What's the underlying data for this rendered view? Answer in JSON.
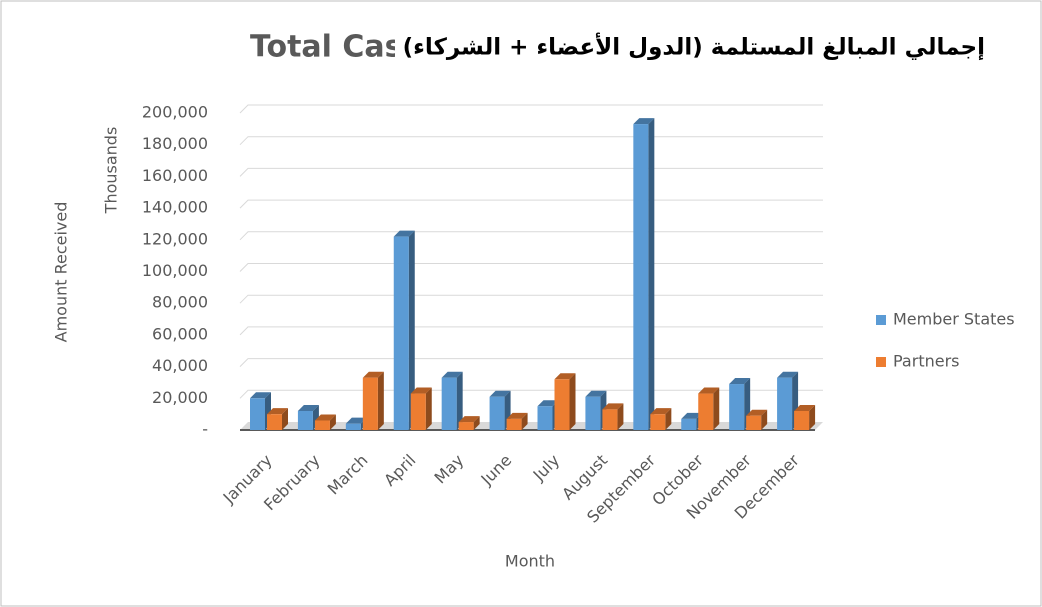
{
  "chart_data": {
    "type": "bar3d",
    "title": "Total Cas",
    "subtitle": "إجمالي المبالغ المستلمة (الدول الأعضاء + الشركاء)",
    "y_label": "Amount Received",
    "y_unit": "Thousands",
    "x_label": "Month",
    "categories": [
      "January",
      "February",
      "March",
      "April",
      "May",
      "June",
      "July",
      "August",
      "September",
      "October",
      "November",
      "December"
    ],
    "series": [
      {
        "name": "Member States",
        "color": "#5b9bd5",
        "values": [
          20000,
          12000,
          4000,
          122000,
          33000,
          21000,
          15000,
          21000,
          193000,
          7000,
          29000,
          33000
        ]
      },
      {
        "name": "Partners",
        "color": "#ed7d31",
        "values": [
          10000,
          6000,
          33000,
          23000,
          5000,
          7000,
          32000,
          13000,
          10000,
          23000,
          9000,
          12000
        ]
      }
    ],
    "ylim": [
      0,
      200000
    ],
    "yticks": [
      {
        "value": 0,
        "label": "-"
      },
      {
        "value": 20000,
        "label": "20,000"
      },
      {
        "value": 40000,
        "label": "40,000"
      },
      {
        "value": 60000,
        "label": "60,000"
      },
      {
        "value": 80000,
        "label": "80,000"
      },
      {
        "value": 100000,
        "label": "100,000"
      },
      {
        "value": 120000,
        "label": "120,000"
      },
      {
        "value": 140000,
        "label": "140,000"
      },
      {
        "value": 160000,
        "label": "160,000"
      },
      {
        "value": 180000,
        "label": "180,000"
      },
      {
        "value": 200000,
        "label": "200,000"
      }
    ],
    "grid": true,
    "legend": "right"
  }
}
